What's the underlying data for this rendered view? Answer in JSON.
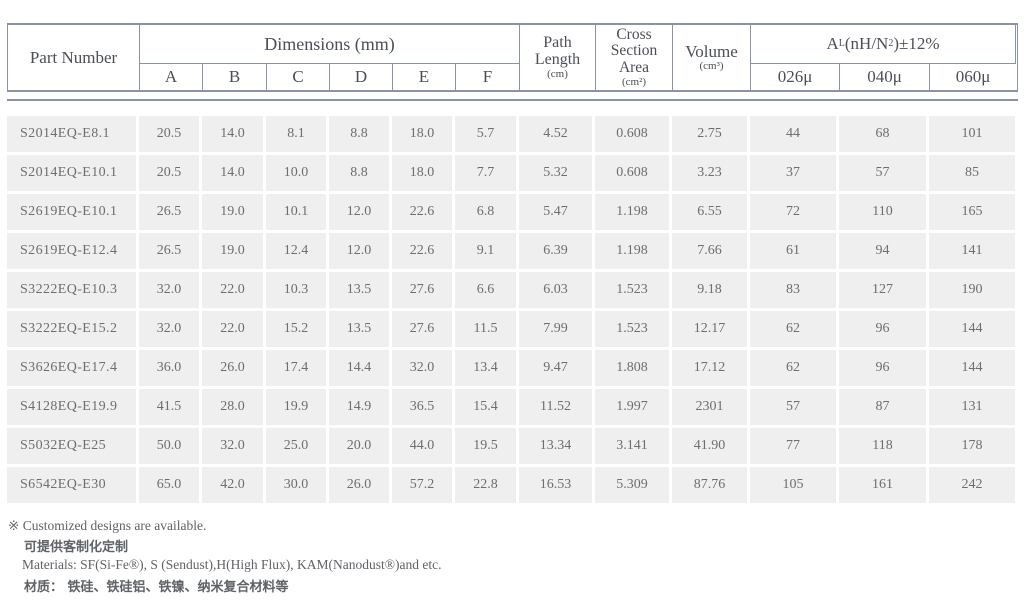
{
  "table": {
    "headers": {
      "part_number": "Part Number",
      "dimensions": "Dimensions (mm)",
      "dim_cols": [
        "A",
        "B",
        "C",
        "D",
        "E",
        "F"
      ],
      "path_length": {
        "title": "Path Length",
        "unit": "(cm)"
      },
      "cross_section": {
        "title": "Cross Section Area",
        "unit": "(cm²)"
      },
      "volume": {
        "title": "Volume",
        "unit": "(cm³)"
      },
      "al": {
        "pre": "A",
        "sub": "L",
        "mid": "(nH/N",
        "sup": "2",
        "post": ")±12%"
      },
      "al_cols": [
        "026μ",
        "040μ",
        "060μ"
      ]
    },
    "rows": [
      [
        "S2014EQ-E8.1",
        "20.5",
        "14.0",
        "8.1",
        "8.8",
        "18.0",
        "5.7",
        "4.52",
        "0.608",
        "2.75",
        "44",
        "68",
        "101"
      ],
      [
        "S2014EQ-E10.1",
        "20.5",
        "14.0",
        "10.0",
        "8.8",
        "18.0",
        "7.7",
        "5.32",
        "0.608",
        "3.23",
        "37",
        "57",
        "85"
      ],
      [
        "S2619EQ-E10.1",
        "26.5",
        "19.0",
        "10.1",
        "12.0",
        "22.6",
        "6.8",
        "5.47",
        "1.198",
        "6.55",
        "72",
        "110",
        "165"
      ],
      [
        "S2619EQ-E12.4",
        "26.5",
        "19.0",
        "12.4",
        "12.0",
        "22.6",
        "9.1",
        "6.39",
        "1.198",
        "7.66",
        "61",
        "94",
        "141"
      ],
      [
        "S3222EQ-E10.3",
        "32.0",
        "22.0",
        "10.3",
        "13.5",
        "27.6",
        "6.6",
        "6.03",
        "1.523",
        "9.18",
        "83",
        "127",
        "190"
      ],
      [
        "S3222EQ-E15.2",
        "32.0",
        "22.0",
        "15.2",
        "13.5",
        "27.6",
        "11.5",
        "7.99",
        "1.523",
        "12.17",
        "62",
        "96",
        "144"
      ],
      [
        "S3626EQ-E17.4",
        "36.0",
        "26.0",
        "17.4",
        "14.4",
        "32.0",
        "13.4",
        "9.47",
        "1.808",
        "17.12",
        "62",
        "96",
        "144"
      ],
      [
        "S4128EQ-E19.9",
        "41.5",
        "28.0",
        "19.9",
        "14.9",
        "36.5",
        "15.4",
        "11.52",
        "1.997",
        "2301",
        "57",
        "87",
        "131"
      ],
      [
        "S5032EQ-E25",
        "50.0",
        "32.0",
        "25.0",
        "20.0",
        "44.0",
        "19.5",
        "13.34",
        "3.141",
        "41.90",
        "77",
        "118",
        "178"
      ],
      [
        "S6542EQ-E30",
        "65.0",
        "42.0",
        "30.0",
        "26.0",
        "57.2",
        "22.8",
        "16.53",
        "5.309",
        "87.76",
        "105",
        "161",
        "242"
      ]
    ]
  },
  "footer": {
    "note_mark": "※",
    "note_en": "Customized designs are available.",
    "note_cn": "可提供客制化定制",
    "materials_en": "Materials: SF(Si-Fe®), S (Sendust),H(High Flux), KAM(Nanodust®)and etc.",
    "materials_cn": "材质： 铁硅、铁硅铝、铁镍、纳米复合材料等"
  },
  "colors": {
    "border": "#8a94a6",
    "row_bg": "#efefef",
    "header_text": "#4b4f55",
    "body_text": "#6b6e72"
  }
}
